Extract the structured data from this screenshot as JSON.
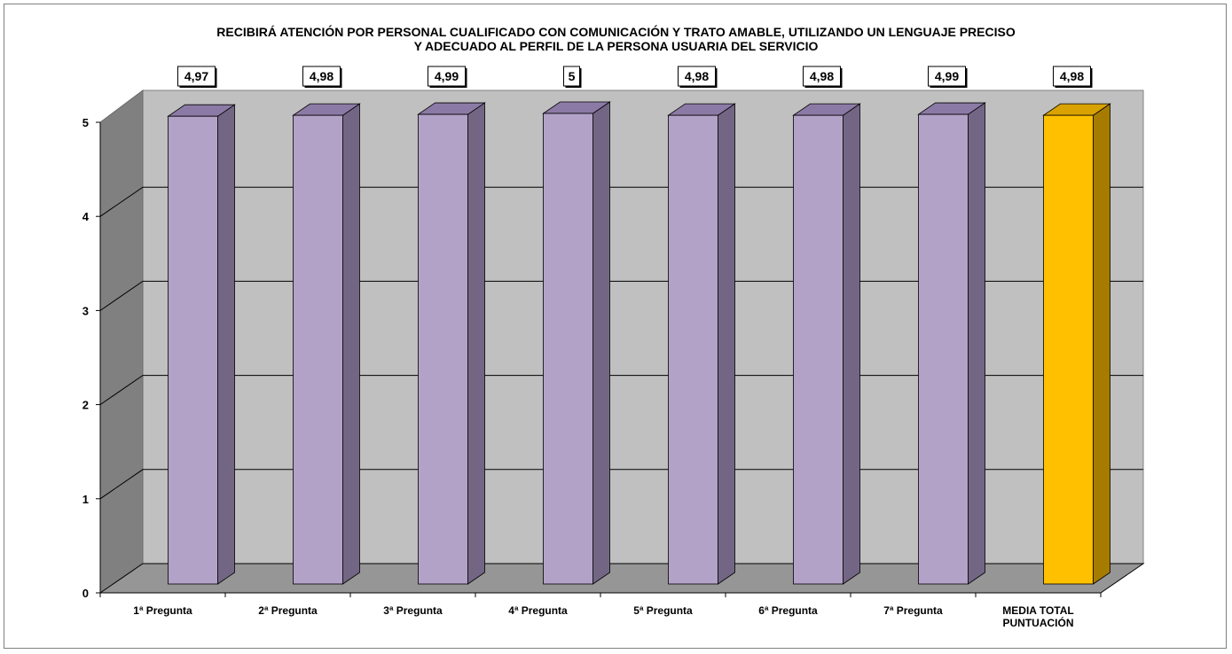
{
  "chart_data": {
    "type": "bar",
    "title": [
      "RECIBIRÁ ATENCIÓN POR PERSONAL CUALIFICADO CON COMUNICACIÓN Y TRATO AMABLE, UTILIZANDO UN LENGUAJE PRECISO",
      "Y ADECUADO AL PERFIL DE LA PERSONA USUARIA DEL SERVICIO"
    ],
    "categories": [
      [
        "1ª Pregunta"
      ],
      [
        "2ª Pregunta"
      ],
      [
        "3ª Pregunta"
      ],
      [
        "4ª Pregunta"
      ],
      [
        "5ª Pregunta"
      ],
      [
        "6ª Pregunta"
      ],
      [
        "7ª Pregunta"
      ],
      [
        "MEDIA TOTAL",
        "PUNTUACIÓN"
      ]
    ],
    "values": [
      4.97,
      4.98,
      4.99,
      5,
      4.98,
      4.98,
      4.99,
      4.98
    ],
    "value_labels": [
      "4,97",
      "4,98",
      "4,99",
      "5",
      "4,98",
      "4,98",
      "4,99",
      "4,98"
    ],
    "y_ticks": [
      "0",
      "1",
      "2",
      "3",
      "4",
      "5"
    ],
    "ylim": [
      0,
      5
    ],
    "grid": true,
    "three_d": true,
    "colors": {
      "bar_front": "#b3a2c7",
      "bar_top": "#8c7aa6",
      "bar_side": "#736685",
      "highlight_front": "#ffc000",
      "highlight_top": "#d9a200",
      "highlight_side": "#a67c00",
      "back_wall": "#c0c0c0",
      "side_wall": "#808080",
      "floor": "#969696",
      "gridline": "#000000"
    }
  }
}
